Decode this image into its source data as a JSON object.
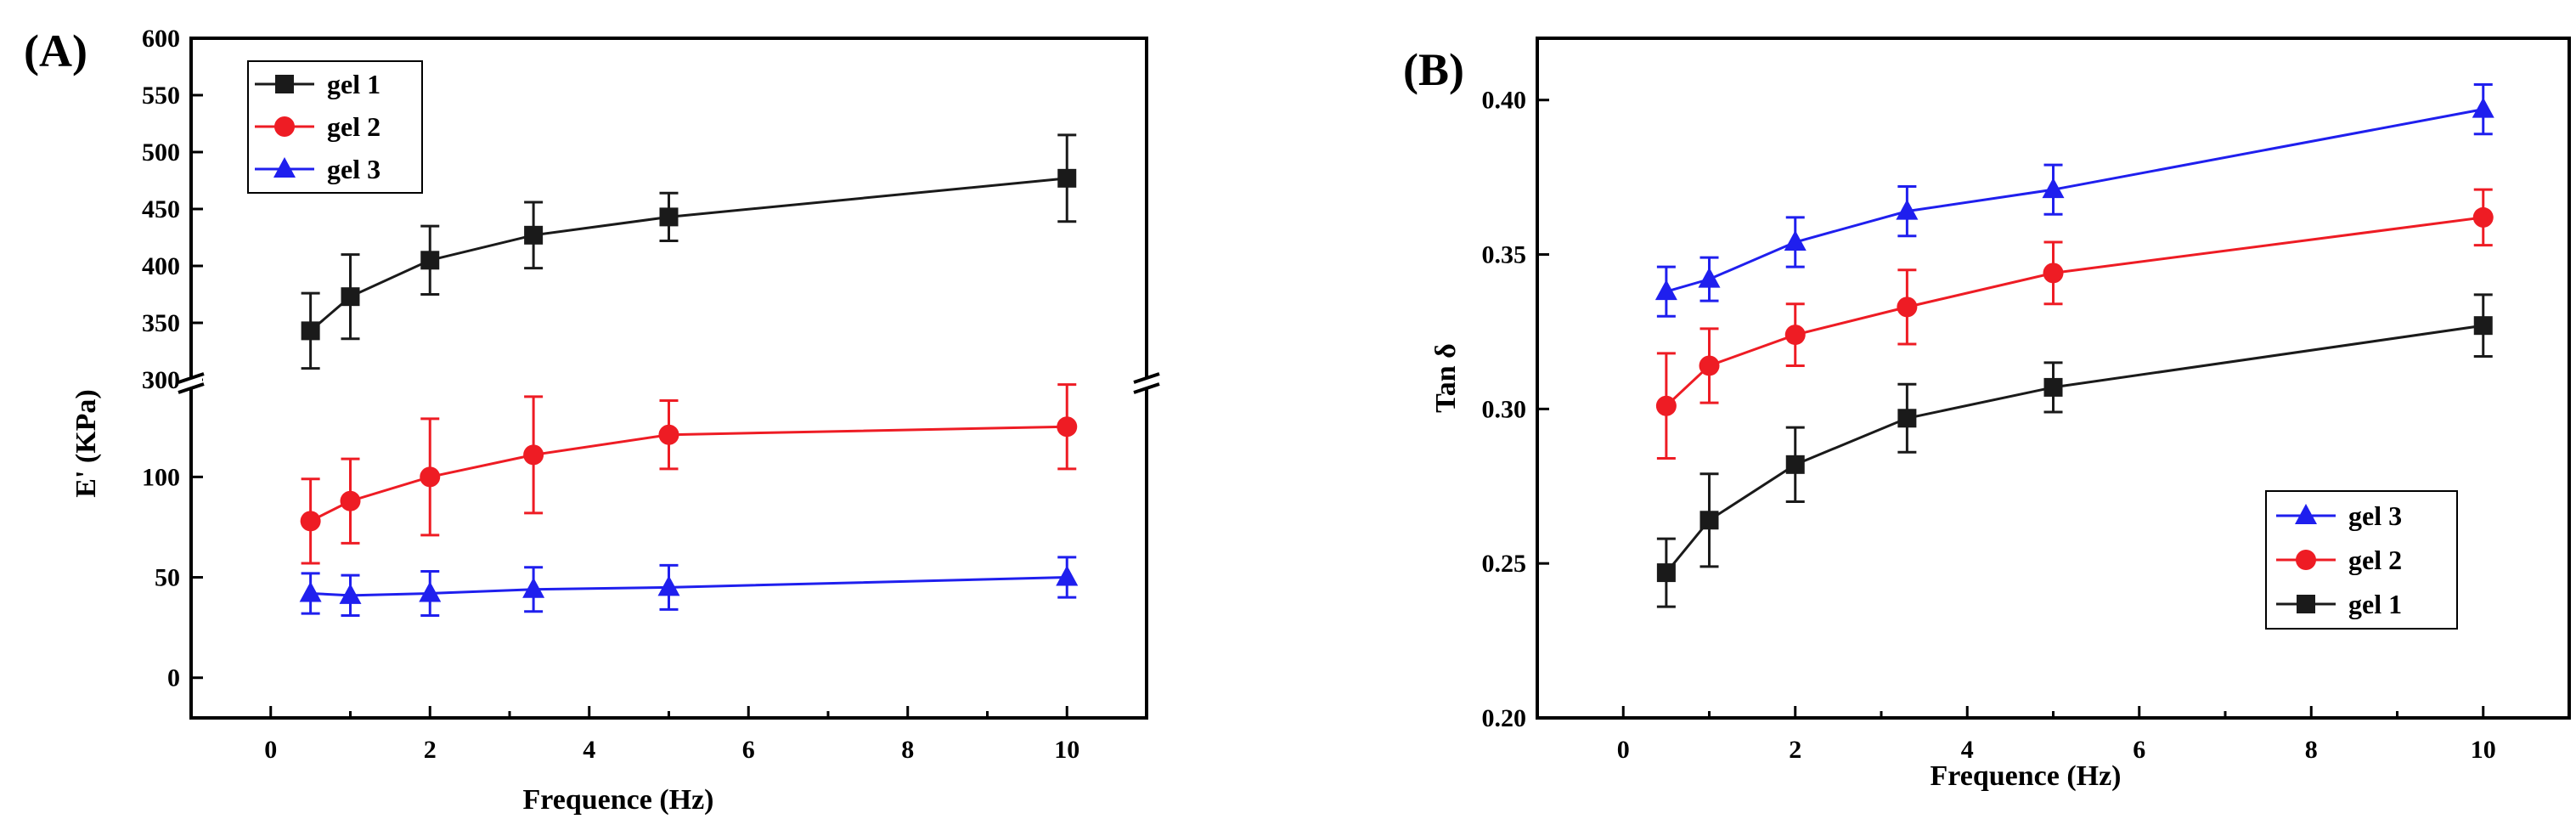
{
  "chart_data": [
    {
      "panel_label": "(A)",
      "type": "line",
      "xlabel": "Frequence (Hz)",
      "ylabel": "E' (KPa)",
      "xlim": [
        -1,
        11
      ],
      "xticks": [
        0,
        2,
        4,
        6,
        8,
        10
      ],
      "x_tick_labels": [
        "0",
        "2",
        "4",
        "6",
        "8",
        "10"
      ],
      "broken_y_axis": {
        "lower": {
          "range": [
            -20,
            145
          ],
          "ticks": [
            0,
            50,
            100
          ],
          "tick_labels": [
            "0",
            "50",
            "100"
          ]
        },
        "upper": {
          "range": [
            300,
            600
          ],
          "ticks": [
            300,
            350,
            400,
            450,
            500,
            550,
            600
          ],
          "tick_labels": [
            "300",
            "350",
            "400",
            "450",
            "500",
            "550",
            "600"
          ]
        }
      },
      "x": [
        0.5,
        1,
        2,
        3.3,
        5,
        10
      ],
      "legend_position": "top-left",
      "series": [
        {
          "name": "gel 1",
          "color": "#1a1a1a",
          "marker": "square",
          "values": [
            343,
            373,
            405,
            427,
            443,
            477
          ],
          "errors": [
            33,
            37,
            30,
            29,
            21,
            38
          ]
        },
        {
          "name": "gel 2",
          "color": "#ee1c24",
          "marker": "circle",
          "values": [
            78,
            88,
            100,
            111,
            121,
            125
          ],
          "errors": [
            21,
            21,
            29,
            29,
            17,
            21
          ]
        },
        {
          "name": "gel 3",
          "color": "#1f1fee",
          "marker": "triangle",
          "values": [
            42,
            41,
            42,
            44,
            45,
            50
          ],
          "errors": [
            10,
            10,
            11,
            11,
            11,
            10
          ]
        }
      ]
    },
    {
      "panel_label": "(B)",
      "type": "line",
      "xlabel": "Frequence (Hz)",
      "ylabel": "Tan δ",
      "xlim": [
        -1,
        11
      ],
      "ylim": [
        0.2,
        0.42
      ],
      "xticks": [
        0,
        2,
        4,
        6,
        8,
        10
      ],
      "x_tick_labels": [
        "0",
        "2",
        "4",
        "6",
        "8",
        "10"
      ],
      "yticks": [
        0.2,
        0.25,
        0.3,
        0.35,
        0.4
      ],
      "y_tick_labels": [
        "0.20",
        "0.25",
        "0.30",
        "0.35",
        "0.40"
      ],
      "x": [
        0.5,
        1,
        2,
        3.3,
        5,
        10
      ],
      "legend_position": "bottom-right",
      "series": [
        {
          "name": "gel 3",
          "color": "#1f1fee",
          "marker": "triangle",
          "values": [
            0.338,
            0.342,
            0.354,
            0.364,
            0.371,
            0.397
          ],
          "errors": [
            0.008,
            0.007,
            0.008,
            0.008,
            0.008,
            0.008
          ]
        },
        {
          "name": "gel 2",
          "color": "#ee1c24",
          "marker": "circle",
          "values": [
            0.301,
            0.314,
            0.324,
            0.333,
            0.344,
            0.362
          ],
          "errors": [
            0.017,
            0.012,
            0.01,
            0.012,
            0.01,
            0.009
          ]
        },
        {
          "name": "gel 1",
          "color": "#1a1a1a",
          "marker": "square",
          "values": [
            0.247,
            0.264,
            0.282,
            0.297,
            0.307,
            0.327
          ],
          "errors": [
            0.011,
            0.015,
            0.012,
            0.011,
            0.008,
            0.01
          ]
        }
      ]
    }
  ]
}
